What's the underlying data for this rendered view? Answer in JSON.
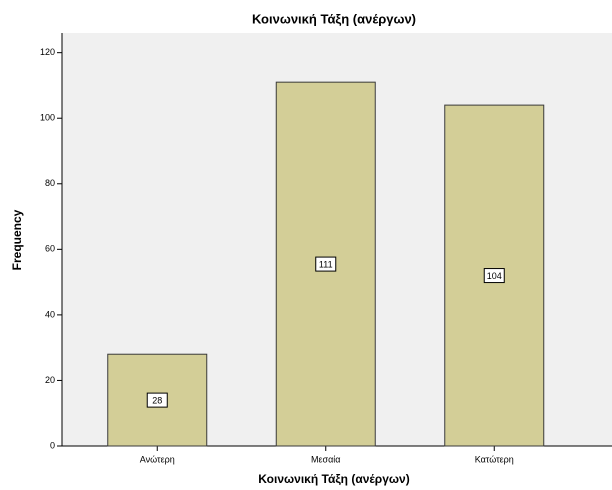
{
  "chart_data": {
    "type": "bar",
    "title": "Κοινωνική Τάξη (ανέργων)",
    "x_label": "Κοινωνική Τάξη (ανέργων)",
    "y_label": "Frequency",
    "categories": [
      "Ανώτερη",
      "Μεσαία",
      "Κατώτερη"
    ],
    "values": [
      28,
      111,
      104
    ],
    "color": "#d3ce97",
    "ylim": [
      0,
      126
    ],
    "yticks": [
      0,
      20,
      40,
      60,
      80,
      100,
      120
    ],
    "grid": false
  }
}
